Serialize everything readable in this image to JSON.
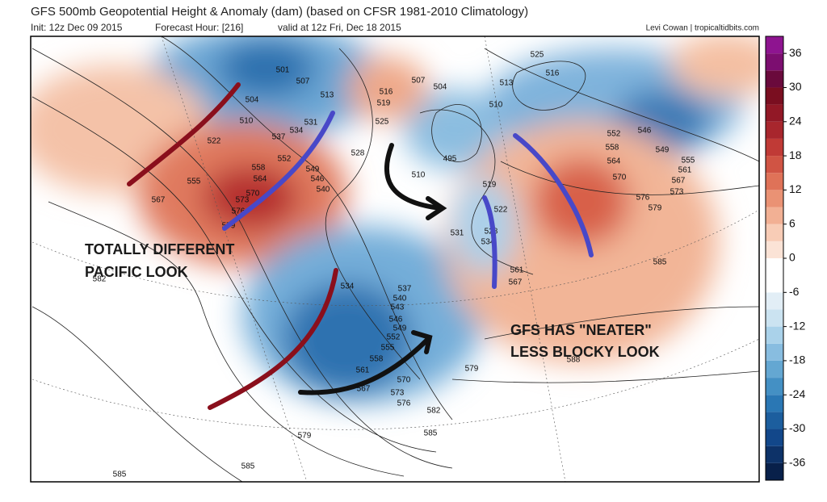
{
  "header": {
    "title": "GFS 500mb Geopotential Height & Anomaly (dam) (based on CFSR 1981-2010 Climatology)",
    "init": "Init: 12z Dec 09 2015",
    "forecast": "Forecast Hour: [216]",
    "valid": "valid at 12z Fri, Dec 18 2015",
    "credit": "Levi Cowan | tropicaltidbits.com"
  },
  "annotations": {
    "left": [
      "TOTALLY DIFFERENT",
      "PACIFIC LOOK"
    ],
    "right": [
      "GFS HAS \"NEATER\"",
      "LESS BLOCKY LOOK"
    ]
  },
  "colorbar": {
    "lim": [
      -39,
      39
    ],
    "ticks": [
      36,
      30,
      24,
      18,
      12,
      6,
      0,
      -6,
      -12,
      -18,
      -24,
      -30,
      -36
    ],
    "colors": [
      "#08204a",
      "#0d3268",
      "#12478a",
      "#1c5e9e",
      "#2a77b4",
      "#4490c4",
      "#64a7d2",
      "#88bde0",
      "#aad2ea",
      "#cbe3f1",
      "#e2eef6",
      "#ffffff",
      "#ffffff",
      "#fbe3d6",
      "#f8ccb6",
      "#f2b094",
      "#ea9274",
      "#df7258",
      "#d05444",
      "#c03a36",
      "#a8262d",
      "#921826",
      "#7a0e20",
      "#6a0a3c",
      "#7c0e70",
      "#8e1490"
    ]
  },
  "contour_labels": [
    501,
    507,
    504,
    510,
    513,
    522,
    531,
    534,
    537,
    552,
    555,
    558,
    564,
    567,
    570,
    573,
    576,
    579,
    528,
    540,
    546,
    549,
    516,
    519,
    525,
    507,
    504,
    495,
    510,
    519,
    522,
    528,
    531,
    534,
    525,
    513,
    516,
    510,
    546,
    552,
    558,
    564,
    570,
    576,
    579,
    573,
    567,
    561,
    555,
    549,
    585,
    582,
    534,
    537,
    540,
    543,
    546,
    549,
    552,
    555,
    558,
    561,
    567,
    570,
    573,
    576,
    582,
    585,
    579,
    585,
    585,
    588,
    579,
    561,
    567
  ]
}
